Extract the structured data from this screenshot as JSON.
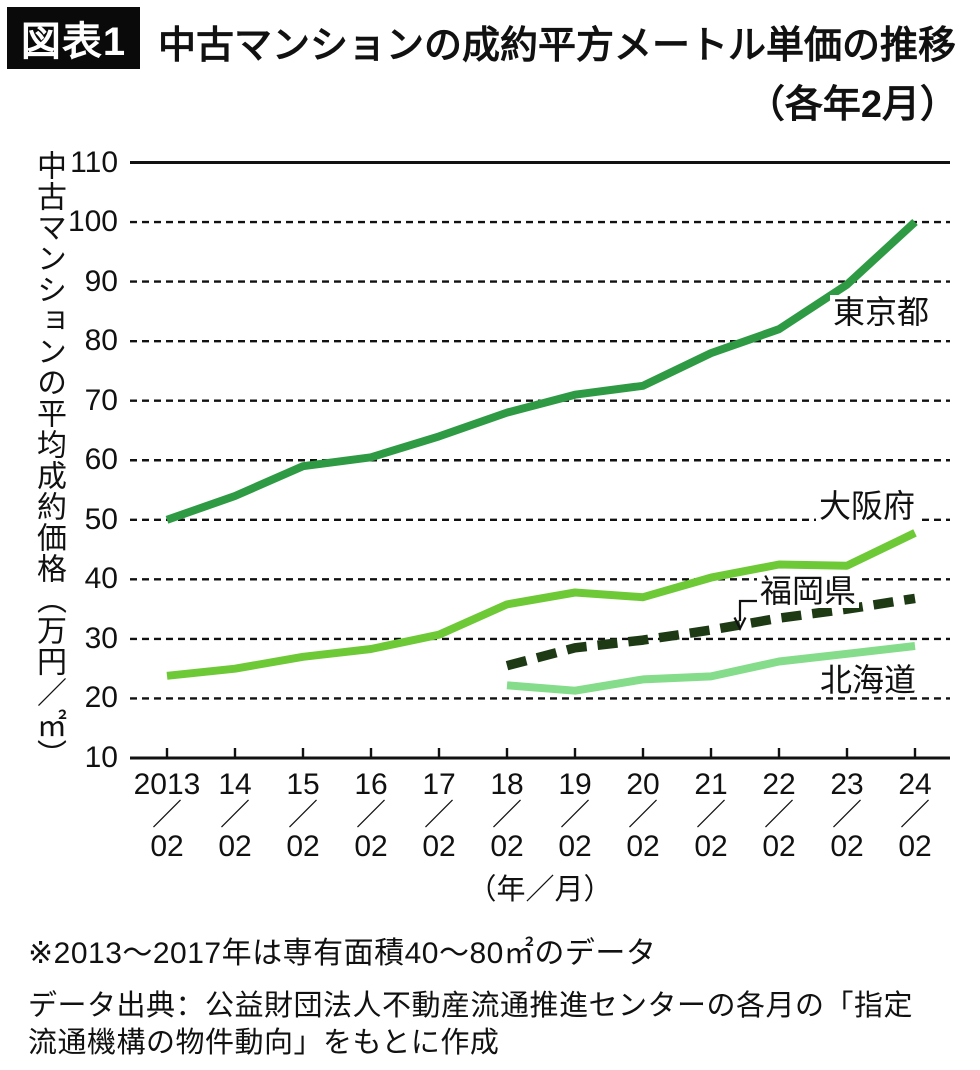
{
  "header": {
    "badge": "図表1",
    "title": "中古マンションの成約平方メートル単価の推移",
    "subtitle": "（各年2月）"
  },
  "chart_data": {
    "type": "line",
    "title": "中古マンションの成約平方メートル単価の推移（各年2月）",
    "ylabel": "中古マンションの平均成約価格（万円／㎡）",
    "xlabel": "（年／月）",
    "ylim": [
      10,
      110
    ],
    "y_ticks": [
      110,
      100,
      90,
      80,
      70,
      60,
      50,
      40,
      30,
      20,
      10
    ],
    "x_categories": [
      "2013",
      "14",
      "15",
      "16",
      "17",
      "18",
      "19",
      "20",
      "21",
      "22",
      "23",
      "24"
    ],
    "x_month": "02",
    "x_separator": "／",
    "grid": "horizontal-dashed",
    "legend_position": "inline-right",
    "series": [
      {
        "name": "東京都",
        "color": "#2e9b44",
        "style": "solid",
        "values": [
          50,
          54,
          59,
          60.5,
          64,
          68,
          71,
          72.5,
          78,
          82,
          89.5,
          100
        ]
      },
      {
        "name": "大阪府",
        "color": "#6ec937",
        "style": "solid",
        "values": [
          23.8,
          25,
          27,
          28.3,
          30.7,
          35.8,
          37.8,
          37,
          40.3,
          42.5,
          42.3,
          47.8
        ]
      },
      {
        "name": "福岡県",
        "color": "#1e3a15",
        "style": "dashed",
        "values": [
          null,
          null,
          null,
          null,
          null,
          25.5,
          28.5,
          29.8,
          31.5,
          33.5,
          35,
          36.8
        ]
      },
      {
        "name": "北海道",
        "color": "#85dc8b",
        "style": "solid",
        "values": [
          null,
          null,
          null,
          null,
          null,
          22.2,
          21.3,
          23.2,
          23.7,
          26.2,
          27.5,
          28.8
        ]
      }
    ]
  },
  "footnotes": {
    "note": "※2013～2017年は専有面積40～80㎡のデータ",
    "source": "データ出典：公益財団法人不動産流通推進センターの各月の「指定流通機構の物件動向」をもとに作成"
  }
}
